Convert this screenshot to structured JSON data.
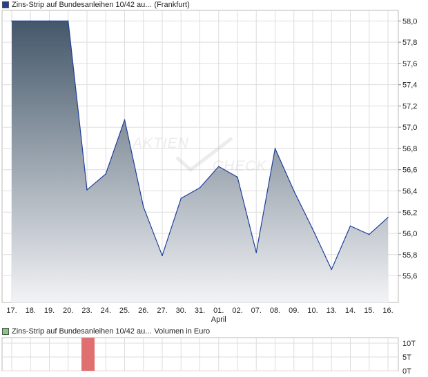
{
  "legend": {
    "price_title": "Zins-Strip auf Bundesanleihen 10/42 au...",
    "price_exchange": "(Frankfurt)",
    "volume_title": "Zins-Strip auf Bundesanleihen 10/42 au...",
    "volume_unit": "Volumen in Euro"
  },
  "watermark": {
    "line1": "AKTIEN",
    "line2": "CHECK"
  },
  "colors": {
    "line": "#1f3f9a",
    "fill_top": "#44576a",
    "fill_bottom": "#f2f3f5",
    "grid": "#dddddd",
    "volume_bar": "#e07070",
    "volume_legend": "#7ccf7c"
  },
  "chart_data": [
    {
      "type": "area",
      "x": [
        "17.",
        "18.",
        "19.",
        "20.",
        "23.",
        "24.",
        "25.",
        "26.",
        "27.",
        "30.",
        "31.",
        "01.",
        "02.",
        "07.",
        "08.",
        "09.",
        "10.",
        "13.",
        "14.",
        "15.",
        "16."
      ],
      "x_sublabel": {
        "index": 11,
        "text": "April"
      },
      "series": [
        {
          "values": [
            58.0,
            58.0,
            58.0,
            58.0,
            56.41,
            56.56,
            57.07,
            56.25,
            55.79,
            56.33,
            56.43,
            56.63,
            56.53,
            55.82,
            56.8,
            56.4,
            56.04,
            55.66,
            56.07,
            55.99,
            56.15
          ]
        }
      ],
      "ylim": [
        55.35,
        58.1
      ],
      "yticks": [
        "55,6",
        "55,8",
        "56,0",
        "56,2",
        "56,4",
        "56,6",
        "56,8",
        "57,0",
        "57,2",
        "57,4",
        "57,6",
        "57,8",
        "58,0"
      ],
      "ytick_values": [
        55.6,
        55.8,
        56.0,
        56.2,
        56.4,
        56.6,
        56.8,
        57.0,
        57.2,
        57.4,
        57.6,
        57.8,
        58.0
      ],
      "y_axis_side": "right",
      "grid": true
    },
    {
      "type": "bar",
      "categories": [
        "17.",
        "18.",
        "19.",
        "20.",
        "23.",
        "24.",
        "25.",
        "26.",
        "27.",
        "30.",
        "31.",
        "01.",
        "02.",
        "07.",
        "08.",
        "09.",
        "10.",
        "13.",
        "14.",
        "15.",
        "16."
      ],
      "values": [
        0,
        0,
        0,
        0,
        12,
        0,
        0,
        0,
        0,
        0,
        0,
        0,
        0,
        0,
        0,
        0,
        0,
        0,
        0,
        0,
        0
      ],
      "ylim": [
        0,
        12
      ],
      "yticks": [
        "10T",
        "5T",
        "0T"
      ],
      "ytick_values": [
        10,
        5,
        0
      ],
      "y_axis_side": "right",
      "grid": true
    }
  ]
}
